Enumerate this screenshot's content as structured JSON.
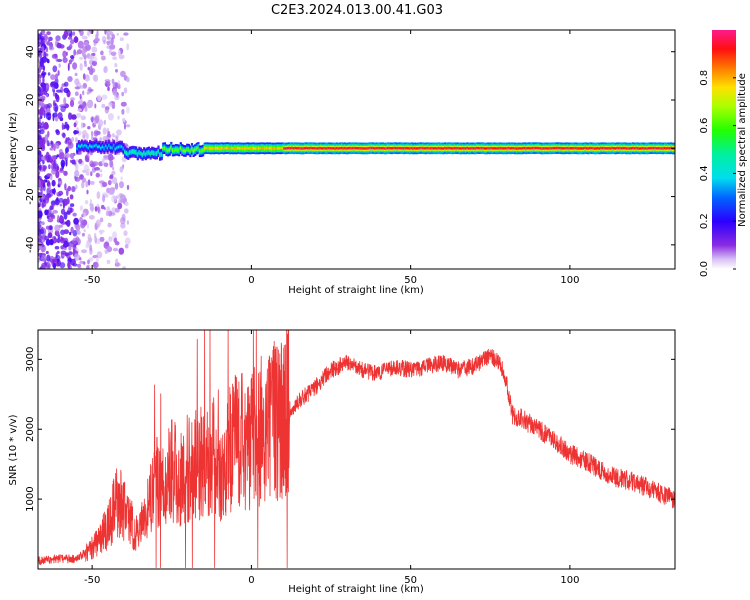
{
  "figure": {
    "title": "C2E3.2024.013.00.41.G03"
  },
  "colorbar": {
    "label": "Normalized spectral amplitude",
    "ticks": [
      0.0,
      0.2,
      0.4,
      0.6,
      0.8
    ],
    "tick_labels": [
      "0.0",
      "0.2",
      "0.4",
      "0.6",
      "0.8"
    ],
    "range": [
      0,
      1
    ]
  },
  "chart_data": [
    {
      "type": "heatmap",
      "xlabel": "Height of straight line (km)",
      "ylabel": "Frequency (Hz)",
      "xlim": [
        -67,
        133
      ],
      "ylim": [
        -50,
        49
      ],
      "xticks": [
        -50,
        0,
        50,
        100
      ],
      "yticks": [
        -40,
        -20,
        0,
        20,
        40
      ],
      "colormap": "rainbow (white to purple to blue to cyan to green to yellow to red to magenta)",
      "band": {
        "center_frequency": 0,
        "half_width": 1.5,
        "segments": [
          {
            "x_start": -55,
            "x_end": -40,
            "center": 0.5,
            "amplitude": 0.35
          },
          {
            "x_start": -40,
            "x_end": -28,
            "center": -2,
            "amplitude": 0.45
          },
          {
            "x_start": -28,
            "x_end": -15,
            "center": -0.5,
            "amplitude": 0.6
          },
          {
            "x_start": -15,
            "x_end": 10,
            "center": 0,
            "amplitude": 0.75
          },
          {
            "x_start": 10,
            "x_end": 133,
            "center": 0,
            "amplitude": 0.9
          }
        ]
      },
      "noise_region": {
        "x_start": -67,
        "x_end": -40,
        "amplitude": 0.15
      }
    },
    {
      "type": "line",
      "xlabel": "Height of straight line (km)",
      "ylabel": "SNR (10 * v/v)",
      "xlim": [
        -67,
        133
      ],
      "ylim": [
        0,
        3420
      ],
      "xticks": [
        -50,
        0,
        50,
        100
      ],
      "yticks": [
        1000,
        2000,
        3000
      ],
      "series": [
        {
          "color": "#ee3333",
          "x": [
            -67,
            -60,
            -55,
            -50,
            -45,
            -42,
            -40,
            -36,
            -32,
            -30,
            -28,
            -25,
            -22,
            -20,
            -16,
            -13,
            -11,
            -10,
            -9,
            -8,
            -5,
            0,
            5,
            10,
            15,
            20,
            25,
            30,
            35,
            40,
            45,
            50,
            55,
            60,
            65,
            70,
            75,
            78,
            80,
            82,
            85,
            90,
            95,
            100,
            105,
            110,
            115,
            120,
            125,
            130,
            133
          ],
          "values": [
            120,
            150,
            140,
            300,
            600,
            1000,
            850,
            500,
            950,
            1250,
            1100,
            1400,
            1300,
            1450,
            1500,
            1600,
            1750,
            1600,
            1300,
            1600,
            1800,
            1850,
            2050,
            2200,
            2400,
            2600,
            2850,
            2950,
            2850,
            2800,
            2900,
            2850,
            2900,
            2950,
            2850,
            2900,
            3050,
            2950,
            2700,
            2200,
            2150,
            2000,
            1850,
            1650,
            1550,
            1400,
            1300,
            1250,
            1150,
            1050,
            1000
          ]
        }
      ]
    }
  ]
}
